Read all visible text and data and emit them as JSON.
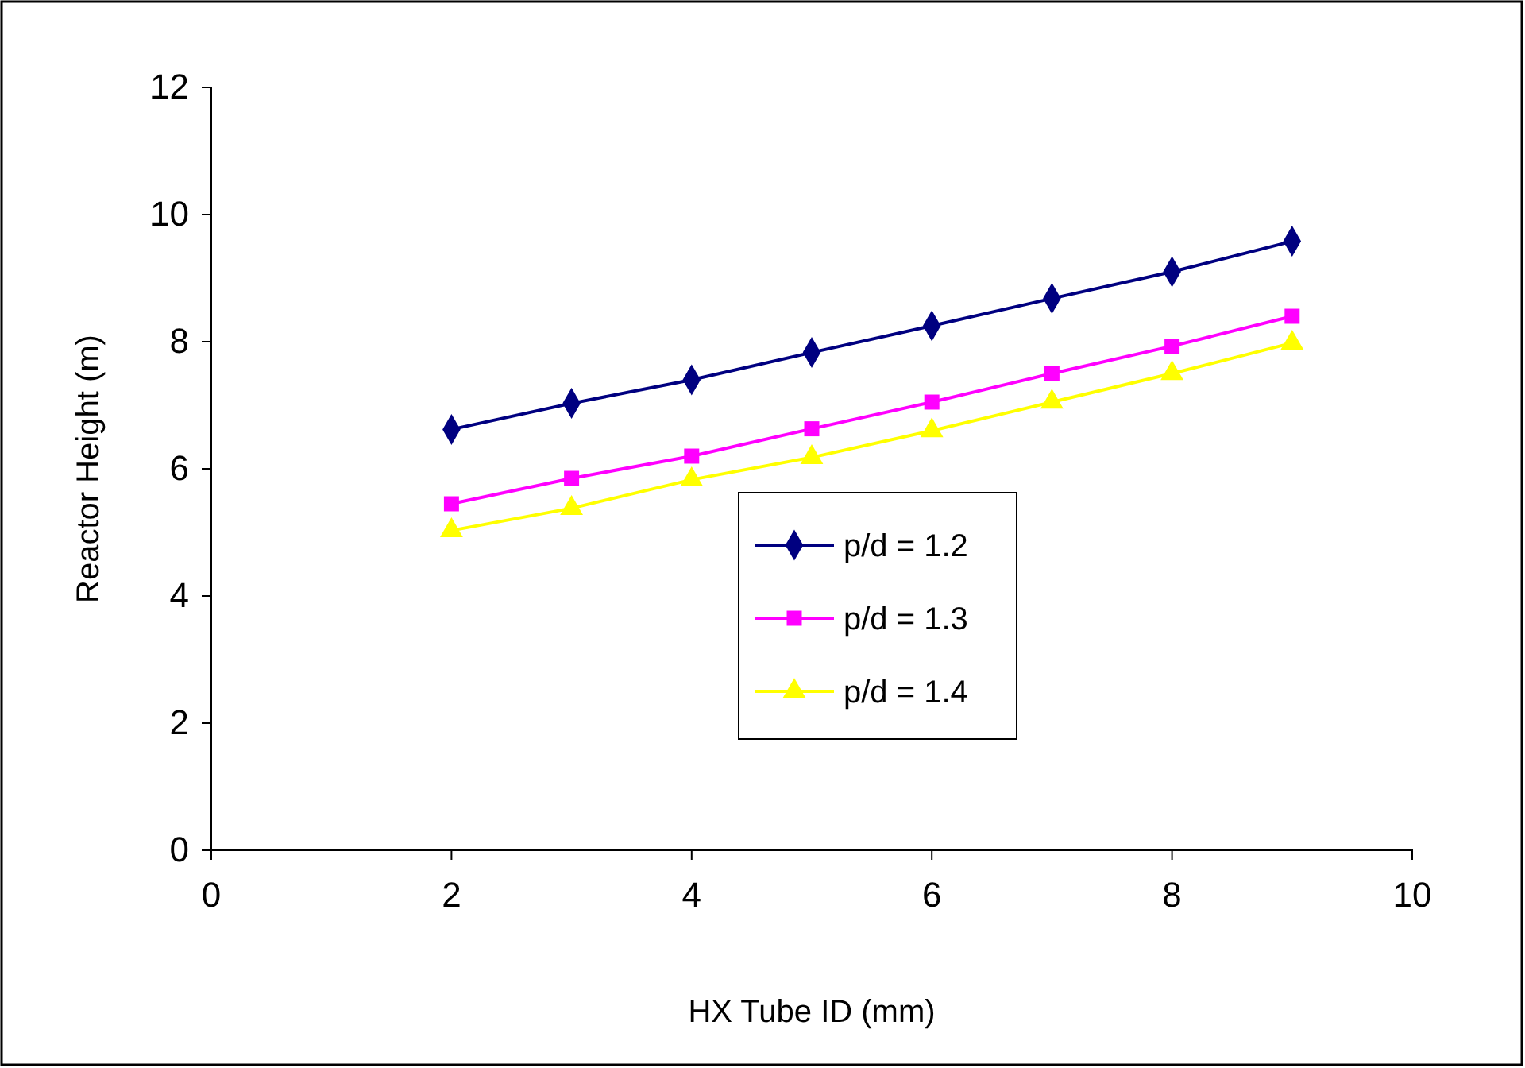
{
  "chart_data": {
    "type": "line",
    "xlabel": "HX Tube ID (mm)",
    "ylabel": "Reactor Height (m)",
    "x": [
      2,
      3,
      4,
      5,
      6,
      7,
      8,
      9
    ],
    "series": [
      {
        "name": "p/d = 1.2",
        "color": "#000080",
        "marker": "diamond",
        "values": [
          6.62,
          7.03,
          7.4,
          7.83,
          8.25,
          8.68,
          9.1,
          9.58
        ]
      },
      {
        "name": "p/d = 1.3",
        "color": "#ff00ff",
        "marker": "square",
        "values": [
          5.45,
          5.85,
          6.2,
          6.63,
          7.05,
          7.5,
          7.93,
          8.4
        ]
      },
      {
        "name": "p/d = 1.4",
        "color": "#ffff00",
        "marker": "triangle",
        "values": [
          5.03,
          5.38,
          5.83,
          6.18,
          6.6,
          7.05,
          7.5,
          7.98
        ]
      }
    ],
    "xlim": [
      0,
      10
    ],
    "xticks": [
      0,
      2,
      4,
      6,
      8,
      10
    ],
    "ylim": [
      0,
      12
    ],
    "yticks": [
      0,
      2,
      4,
      6,
      8,
      10,
      12
    ],
    "legend": "center",
    "grid": false,
    "line_style": "solid"
  }
}
